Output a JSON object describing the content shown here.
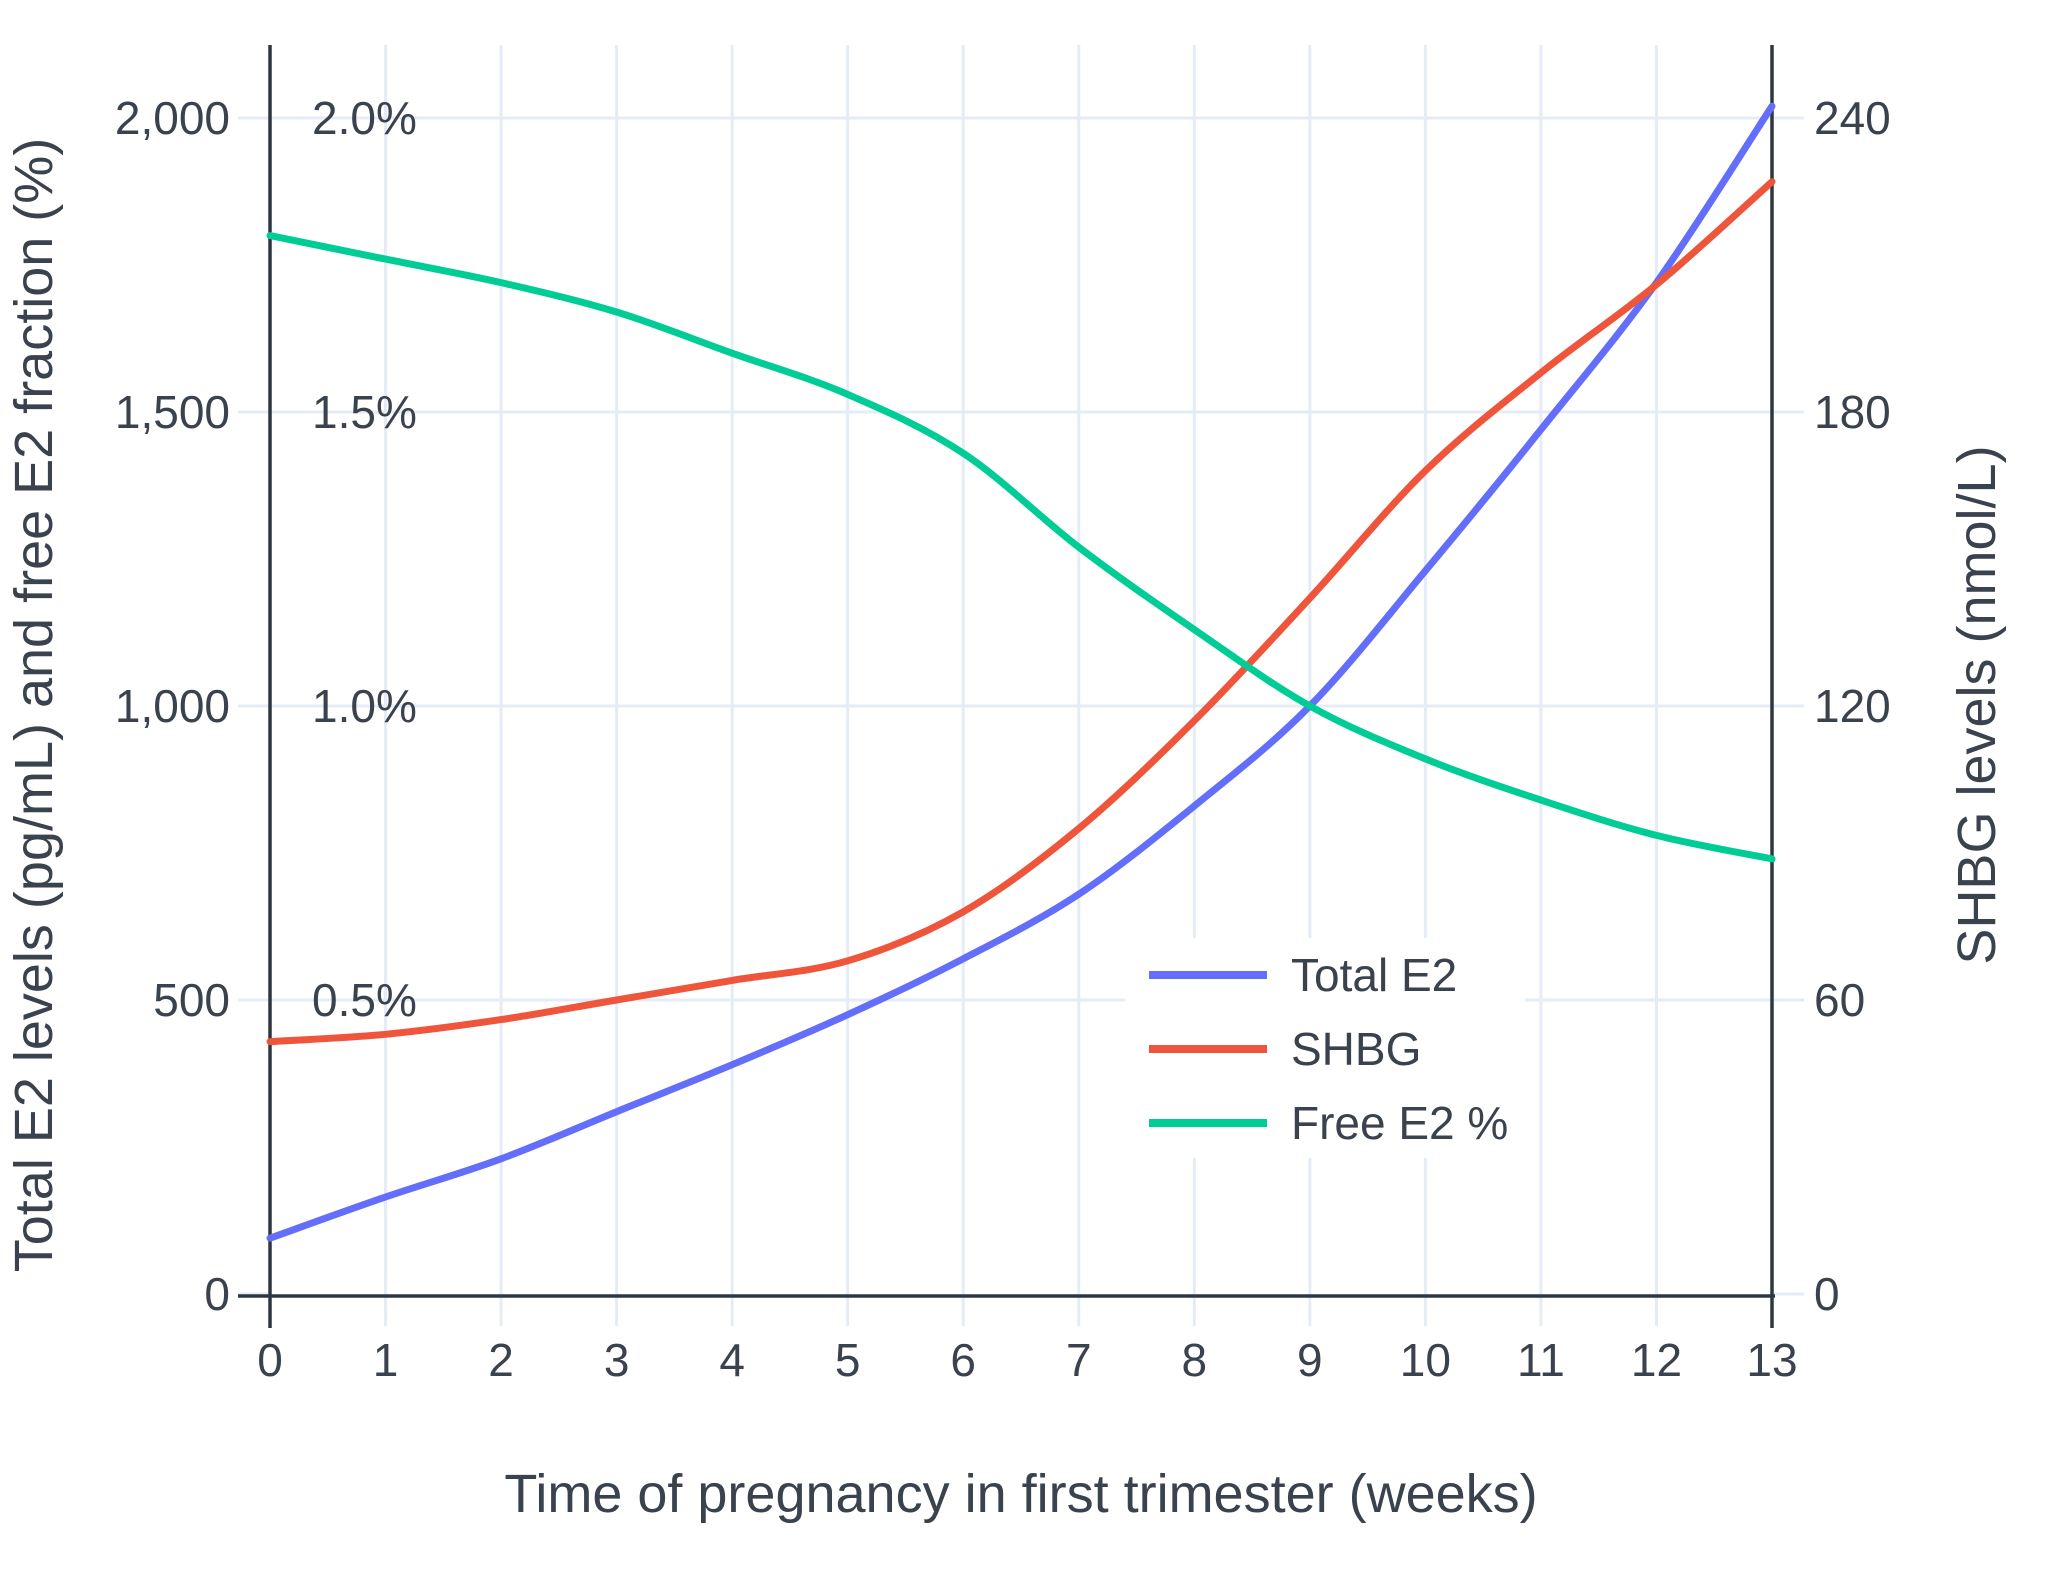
{
  "chart_data": {
    "type": "line",
    "title": "",
    "xlabel": "Time of pregnancy in first trimester (weeks)",
    "ylabel_left": "Total E2 levels (pg/mL) and free E2 fraction (%)",
    "ylabel_right": "SHBG levels (nmol/L)",
    "x": [
      0,
      1,
      2,
      3,
      4,
      5,
      6,
      7,
      8,
      9,
      10,
      11,
      12,
      13
    ],
    "x_tick_labels": [
      "0",
      "1",
      "2",
      "3",
      "4",
      "5",
      "6",
      "7",
      "8",
      "9",
      "10",
      "11",
      "12",
      "13"
    ],
    "x_range": [
      0,
      13
    ],
    "grid": true,
    "legend_position": "inside-right-middle",
    "y_left_range": [
      0,
      2000
    ],
    "y_left_tick_values": [
      0,
      500,
      1000,
      1500,
      2000
    ],
    "y_left_tick_labels": [
      "0",
      "500",
      "1,000",
      "1,500",
      "2,000"
    ],
    "y_left_pct_tick_values": [
      500,
      1000,
      1500,
      2000
    ],
    "y_left_pct_tick_labels": [
      "0.5%",
      "1.0%",
      "1.5%",
      "2.0%"
    ],
    "y_right_range": [
      0,
      240
    ],
    "y_right_tick_values": [
      0,
      500,
      1000,
      1500,
      2000
    ],
    "y_right_tick_labels": [
      "0",
      "60",
      "120",
      "180",
      "240"
    ],
    "series": [
      {
        "name": "Total E2",
        "axis": "left",
        "units": "pg/mL",
        "color": "#636EFA",
        "values": [
          95,
          165,
          230,
          310,
          390,
          475,
          570,
          680,
          830,
          1000,
          1230,
          1470,
          1720,
          2020
        ]
      },
      {
        "name": "SHBG",
        "axis": "right",
        "units": "nmol/L",
        "color": "#EF553B",
        "values": [
          51.5,
          53,
          56,
          60,
          64,
          68,
          78,
          95,
          117,
          142,
          168,
          188,
          206,
          227
        ]
      },
      {
        "name": "Free E2 %",
        "axis": "left-percent",
        "units": "%",
        "color": "#00CC96",
        "values": [
          1.8,
          1.76,
          1.72,
          1.67,
          1.6,
          1.53,
          1.43,
          1.27,
          1.13,
          1.0,
          0.91,
          0.84,
          0.78,
          0.74
        ]
      }
    ]
  }
}
